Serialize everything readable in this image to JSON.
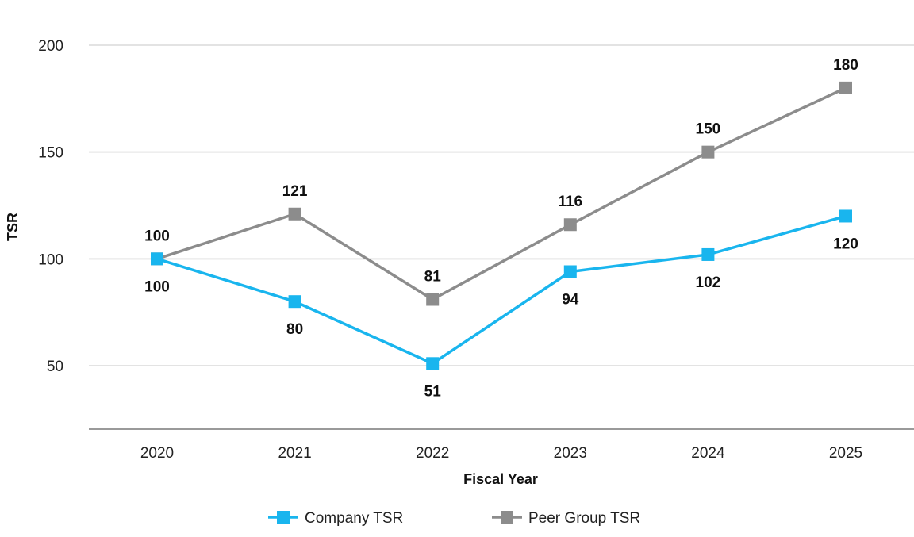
{
  "chart_data": {
    "type": "line",
    "categories": [
      "2020",
      "2021",
      "2022",
      "2023",
      "2024",
      "2025"
    ],
    "series": [
      {
        "name": "Company TSR",
        "color": "#19B5EE",
        "values": [
          100,
          80,
          51,
          94,
          102,
          120
        ],
        "label_position": "below"
      },
      {
        "name": "Peer Group TSR",
        "color": "#8C8C8C",
        "values": [
          100,
          121,
          81,
          116,
          150,
          180
        ],
        "label_position": "above"
      }
    ],
    "title": "",
    "xlabel": "Fiscal Year",
    "ylabel": "TSR",
    "ylim": [
      20,
      200
    ],
    "yticks": [
      50,
      100,
      150,
      200
    ],
    "grid": true,
    "legend": "bottom",
    "marker": "square"
  }
}
